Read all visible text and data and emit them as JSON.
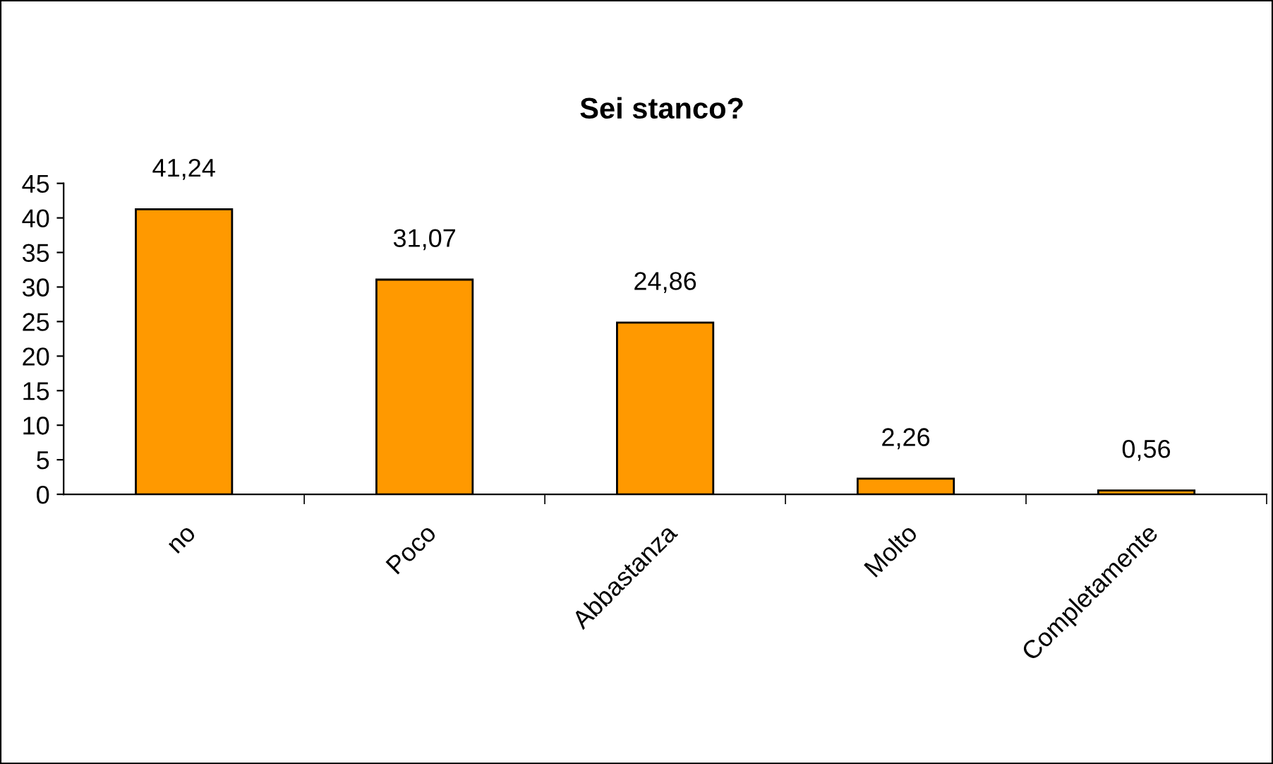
{
  "chart_data": {
    "type": "bar",
    "title": "Sei stanco?",
    "categories": [
      "no",
      "Poco",
      "Abbastanza",
      "Molto",
      "Completamente"
    ],
    "values": [
      41.24,
      31.07,
      24.86,
      2.26,
      0.56
    ],
    "value_labels": [
      "41,24",
      "31,07",
      "24,86",
      "2,26",
      "0,56"
    ],
    "color": "#ff9900",
    "ylim": [
      0,
      45
    ],
    "yticks": [
      0,
      5,
      10,
      15,
      20,
      25,
      30,
      35,
      40,
      45
    ],
    "grid": false,
    "legend": false
  }
}
